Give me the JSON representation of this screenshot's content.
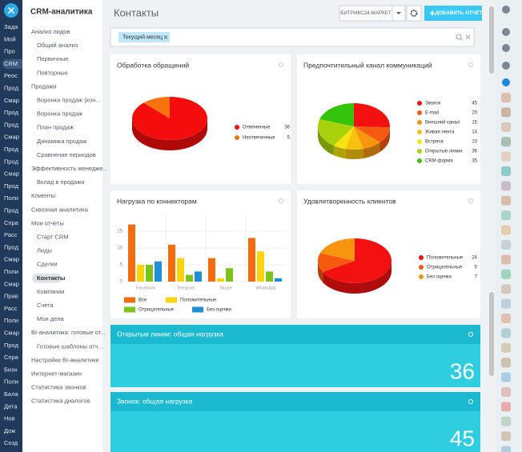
{
  "left_nav": [
    "Зада",
    "Мой",
    "Про",
    "CRM",
    "Реос",
    "Прод",
    "Смар",
    "Прод",
    "Прод",
    "Смар",
    "Прод",
    "Прод",
    "Смар",
    "Прод",
    "Поли",
    "Прод",
    "Спра",
    "Расс",
    "Прод",
    "Смар",
    "Поли",
    "Смар",
    "Прав",
    "Расс",
    "Поли",
    "Смар",
    "Прод",
    "Спра",
    "Бизн",
    "Поли",
    "Бала",
    "Дета",
    "Нов",
    "Дож",
    "Созд"
  ],
  "sidebar": {
    "title": "CRM-аналитика",
    "sections": [
      {
        "label": "Анализ лидов",
        "items": [
          "Общий анализ",
          "Первичные",
          "Повторные"
        ]
      },
      {
        "label": "Продажи",
        "items": [
          "Воронка продаж (кон...",
          "Воронка продаж",
          "План продаж",
          "Динамика продаж",
          "Сравнение периодов"
        ]
      },
      {
        "label": "Эффективность менедже...",
        "items": [
          "Вклад в продажи"
        ]
      },
      {
        "label": "Клиенты",
        "items": []
      },
      {
        "label": "Сквозная аналитика",
        "items": []
      },
      {
        "label": "Мои отчеты",
        "items": [
          "Старт CRM",
          "Лиды",
          "Сделки",
          {
            "label": "Контакты",
            "active": true
          },
          "Компании",
          "Счета",
          "Мои дела"
        ]
      },
      {
        "label": "BI-аналитика: готовые от...",
        "items": [
          "Готовые шаблоны отч..."
        ]
      },
      {
        "label": "Настройки BI-аналитики",
        "items": []
      },
      {
        "label": "Интернет-магазин",
        "items": []
      },
      {
        "label": "Статистика звонков",
        "items": []
      },
      {
        "label": "Статистика диалогов",
        "items": []
      }
    ]
  },
  "header": {
    "title": "Контакты",
    "market_button": "БИТРИКС24.МАРКЕТ",
    "add_button": "ДОБАВИТЬ ОТЧЁТ"
  },
  "filter": {
    "tag": "Текущий месяц"
  },
  "chart_data": [
    {
      "type": "pie",
      "title": "Обработка обращений",
      "categories": [
        "Отвеченные",
        "Неотвеченные"
      ],
      "values": [
        36,
        5
      ],
      "colors": [
        "#f50d0d",
        "#f5720f"
      ]
    },
    {
      "type": "pie",
      "title": "Предпочтительный канал коммуникаций",
      "categories": [
        "Звонок",
        "E-mail",
        "Внешний канал",
        "Живая лента",
        "Встреча",
        "Открытые линии",
        "CRM-форма"
      ],
      "values": [
        45,
        20,
        15,
        14,
        10,
        36,
        35
      ],
      "colors": [
        "#f31010",
        "#f55a10",
        "#f79410",
        "#f9c10f",
        "#f7e30f",
        "#a9d20c",
        "#35c40c"
      ]
    },
    {
      "type": "bar",
      "title": "Нагрузка по коннекторам",
      "categories": [
        "Facebook",
        "Telegram",
        "Skype",
        "WhatsApp"
      ],
      "series": [
        {
          "name": "Все",
          "color": "#f26d0f",
          "values": [
            17,
            11,
            7,
            13
          ]
        },
        {
          "name": "Положительные",
          "color": "#fbd30f",
          "values": [
            5,
            7,
            1,
            9
          ]
        },
        {
          "name": "Отрицательные",
          "color": "#7dc31a",
          "values": [
            5,
            2,
            4,
            3
          ]
        },
        {
          "name": "Без оценки",
          "color": "#1f8fd6",
          "values": [
            6,
            3,
            0,
            1
          ]
        }
      ],
      "ylim": [
        0,
        20
      ],
      "yticks": [
        0,
        5,
        10,
        15
      ]
    },
    {
      "type": "pie",
      "title": "Удовлетворенность клиентов",
      "categories": [
        "Положительные",
        "Отрицательные",
        "Без оценки"
      ],
      "values": [
        24,
        5,
        7
      ],
      "colors": [
        "#f31010",
        "#f55a10",
        "#f79410"
      ]
    }
  ],
  "counters": [
    {
      "title": "Открытые линии: общая нагрузка",
      "value": 36
    },
    {
      "title": "Звонок: общая нагрузка",
      "value": 45
    }
  ]
}
